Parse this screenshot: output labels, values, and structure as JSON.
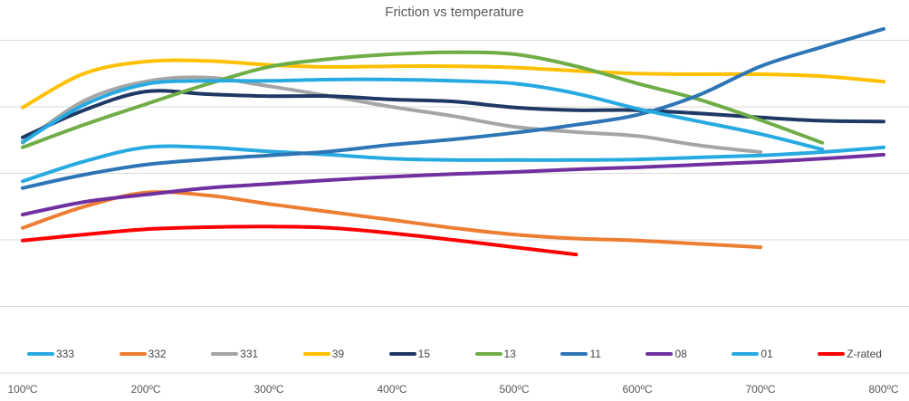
{
  "chart_data": {
    "type": "line",
    "title": "Friction vs temperature",
    "xlabel": "",
    "ylabel": "",
    "x_unit": "ºC",
    "x_tick_labels": [
      "100ºC",
      "200ºC",
      "300ºC",
      "400ºC",
      "500ºC",
      "600ºC",
      "700ºC",
      "800ºC"
    ],
    "x_ticks": [
      100,
      200,
      300,
      400,
      500,
      600,
      700,
      800
    ],
    "x_range": [
      100,
      800
    ],
    "ylim": [
      0,
      0.5
    ],
    "grid": true,
    "gridline_step": 0.1,
    "legend_position": "bottom",
    "smooth": true,
    "series": [
      {
        "name": "333",
        "color": "#27AAE1",
        "x": [
          100,
          150,
          200,
          250,
          300,
          350,
          400,
          450,
          500,
          550,
          600,
          650,
          700,
          750,
          800
        ],
        "values": [
          0.288,
          0.318,
          0.339,
          0.339,
          0.333,
          0.328,
          0.322,
          0.32,
          0.32,
          0.32,
          0.321,
          0.324,
          0.327,
          0.332,
          0.339
        ]
      },
      {
        "name": "332",
        "color": "#ED7D31",
        "x": [
          100,
          150,
          200,
          250,
          300,
          350,
          400,
          450,
          500,
          550,
          600,
          650,
          700
        ],
        "values": [
          0.218,
          0.25,
          0.271,
          0.267,
          0.254,
          0.242,
          0.23,
          0.218,
          0.208,
          0.202,
          0.199,
          0.194,
          0.189
        ]
      },
      {
        "name": "331",
        "color": "#A5A5A5",
        "x": [
          100,
          150,
          200,
          250,
          300,
          350,
          400,
          450,
          500,
          550,
          600,
          650,
          700
        ],
        "values": [
          0.346,
          0.409,
          0.438,
          0.444,
          0.431,
          0.416,
          0.4,
          0.386,
          0.37,
          0.362,
          0.356,
          0.342,
          0.332
        ]
      },
      {
        "name": "39",
        "color": "#FFC000",
        "x": [
          100,
          150,
          200,
          250,
          300,
          350,
          400,
          450,
          500,
          550,
          600,
          650,
          700,
          750,
          800
        ],
        "values": [
          0.399,
          0.45,
          0.468,
          0.469,
          0.463,
          0.46,
          0.461,
          0.461,
          0.459,
          0.454,
          0.45,
          0.449,
          0.449,
          0.446,
          0.438
        ]
      },
      {
        "name": "15",
        "color": "#1F3864",
        "x": [
          100,
          150,
          200,
          250,
          300,
          350,
          400,
          450,
          500,
          550,
          600,
          650,
          700,
          750,
          800
        ],
        "values": [
          0.354,
          0.395,
          0.423,
          0.419,
          0.416,
          0.416,
          0.411,
          0.408,
          0.399,
          0.395,
          0.395,
          0.39,
          0.384,
          0.379,
          0.378
        ]
      },
      {
        "name": "13",
        "color": "#70AD47",
        "x": [
          100,
          150,
          200,
          250,
          300,
          350,
          400,
          450,
          500,
          550,
          600,
          650,
          700,
          750
        ],
        "values": [
          0.339,
          0.373,
          0.404,
          0.434,
          0.46,
          0.472,
          0.479,
          0.482,
          0.479,
          0.461,
          0.435,
          0.411,
          0.38,
          0.346
        ]
      },
      {
        "name": "11",
        "color": "#2E75B6",
        "x": [
          100,
          150,
          200,
          250,
          300,
          350,
          400,
          450,
          500,
          550,
          600,
          650,
          700,
          750,
          800
        ],
        "values": [
          0.278,
          0.298,
          0.313,
          0.321,
          0.327,
          0.333,
          0.343,
          0.351,
          0.361,
          0.373,
          0.388,
          0.418,
          0.461,
          0.49,
          0.517
        ]
      },
      {
        "name": "08",
        "color": "#7030A0",
        "x": [
          100,
          150,
          200,
          250,
          300,
          350,
          400,
          450,
          500,
          550,
          600,
          650,
          700,
          750,
          800
        ],
        "values": [
          0.238,
          0.257,
          0.268,
          0.278,
          0.284,
          0.29,
          0.295,
          0.299,
          0.302,
          0.306,
          0.309,
          0.313,
          0.317,
          0.322,
          0.328
        ]
      },
      {
        "name": "01",
        "color": "#27AAE1",
        "x": [
          100,
          150,
          200,
          250,
          300,
          350,
          400,
          450,
          500,
          550,
          600,
          650,
          700,
          750
        ],
        "values": [
          0.347,
          0.403,
          0.434,
          0.439,
          0.439,
          0.441,
          0.441,
          0.439,
          0.435,
          0.42,
          0.397,
          0.378,
          0.359,
          0.336
        ]
      },
      {
        "name": "Z-rated",
        "color": "#FF0000",
        "x": [
          100,
          150,
          200,
          250,
          300,
          350,
          400,
          450,
          500,
          550
        ],
        "values": [
          0.199,
          0.208,
          0.216,
          0.219,
          0.22,
          0.218,
          0.21,
          0.2,
          0.189,
          0.178
        ]
      }
    ]
  },
  "colors": {
    "background": "#FFFFFF",
    "gridline": "#D9D9D9",
    "title_text": "#595959",
    "axis_text": "#595959",
    "legend_text": "#474747"
  }
}
